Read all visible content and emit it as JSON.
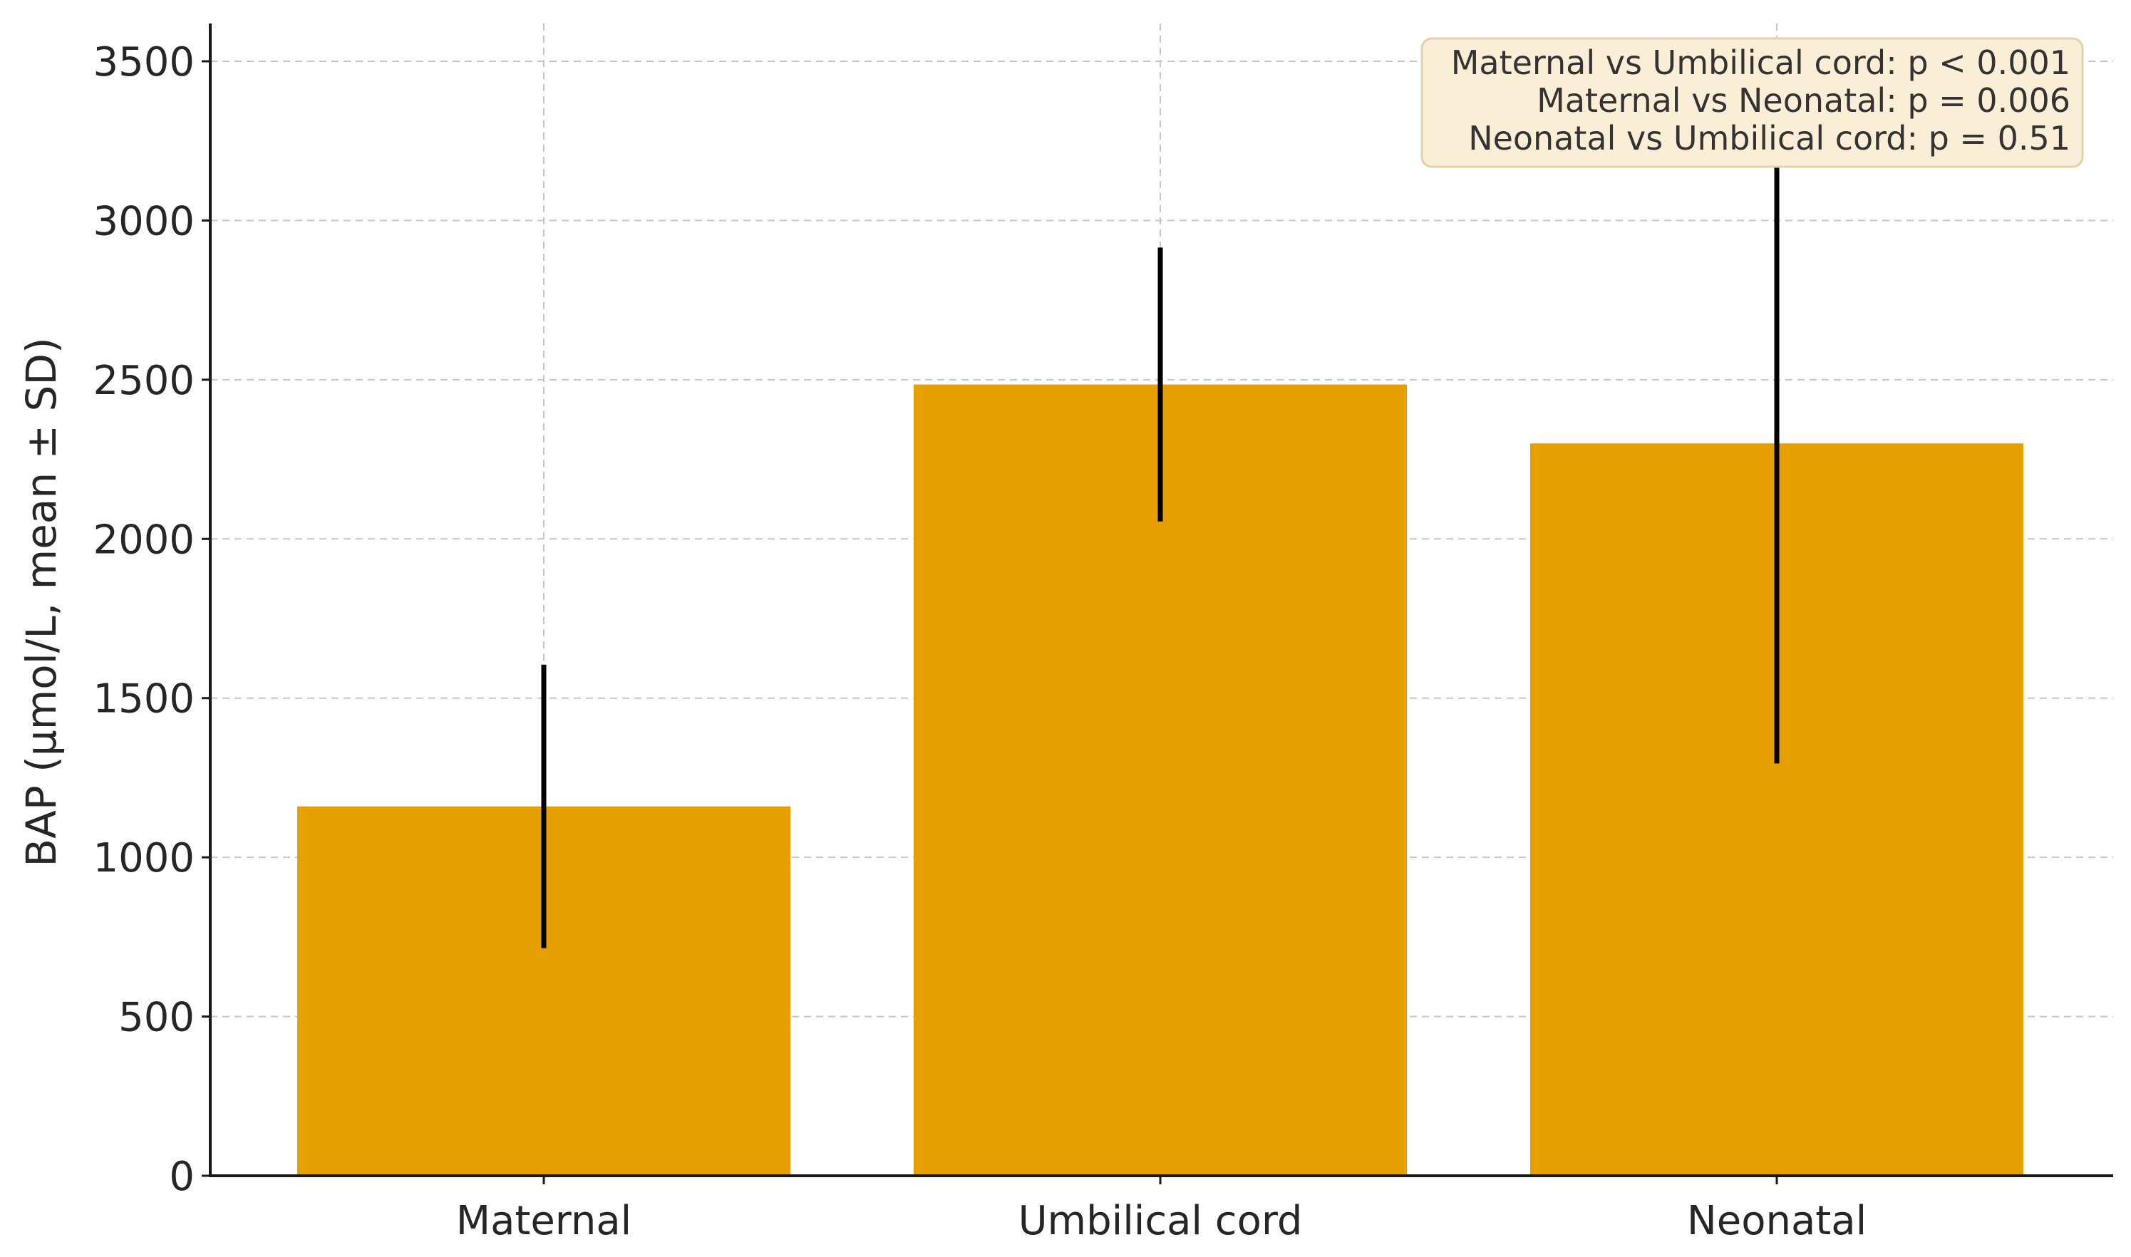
{
  "chart_data": {
    "type": "bar",
    "categories": [
      "Maternal",
      "Umbilical cord",
      "Neonatal"
    ],
    "values": [
      1160,
      2485,
      2300
    ],
    "error_sd": [
      445,
      430,
      1005
    ],
    "ylabel": "BAP (μmol/L, mean ± SD)",
    "xlabel": "",
    "ylim": [
      0,
      3800
    ],
    "yticks": [
      0,
      500,
      1000,
      1500,
      2000,
      2500,
      3000,
      3500
    ],
    "ytick_labels": [
      "0",
      "500",
      "1000",
      "1500",
      "2000",
      "2500",
      "3000",
      "3500"
    ],
    "grid": true,
    "bar_color": "#e5a000",
    "error_color": "#000000",
    "annotation": {
      "location": "top-right",
      "lines": [
        "Maternal vs Umbilical cord: p < 0.001",
        "Maternal vs Neonatal: p = 0.006",
        "Neonatal vs Umbilical cord: p = 0.51"
      ]
    }
  }
}
